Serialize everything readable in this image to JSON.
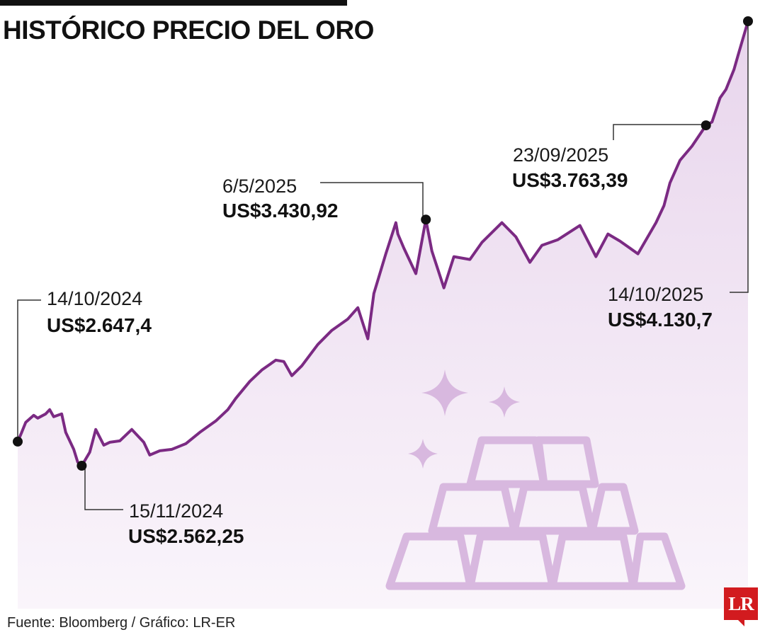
{
  "header": {
    "title": "HISTÓRICO PRECIO DEL ORO"
  },
  "footer": {
    "source": "Fuente: Bloomberg / Gráfico: LR-ER",
    "logo_text": "LR"
  },
  "colors": {
    "line": "#7b2a83",
    "fill_top": "#e8d5ec",
    "fill_bottom": "#faf5fb",
    "marker": "#111111",
    "illustration": "#d8b8df"
  },
  "illustration": {
    "icons": [
      "sparkle-icon",
      "gold-bars-icon"
    ]
  },
  "chart_data": {
    "type": "area",
    "title": "HISTÓRICO PRECIO DEL ORO",
    "xlabel": "",
    "ylabel": "",
    "ylim": [
      2450,
      4150
    ],
    "grid": false,
    "legend": "none",
    "series": [
      {
        "x": [
          "2024-10-14",
          "2024-10-16",
          "2024-10-18",
          "2024-10-22",
          "2024-10-24",
          "2024-10-28",
          "2024-10-30",
          "2024-11-01",
          "2024-11-05",
          "2024-11-07",
          "2024-11-11",
          "2024-11-13",
          "2024-11-15",
          "2024-11-19",
          "2024-11-22",
          "2024-11-26",
          "2024-11-29",
          "2024-12-04",
          "2024-12-10",
          "2024-12-16",
          "2024-12-19",
          "2024-12-24",
          "2024-12-30",
          "2025-01-06",
          "2025-01-13",
          "2025-01-21",
          "2025-01-27",
          "2025-01-31",
          "2025-02-07",
          "2025-02-13",
          "2025-02-20",
          "2025-02-24",
          "2025-02-28",
          "2025-03-05",
          "2025-03-13",
          "2025-03-20",
          "2025-03-28",
          "2025-04-02",
          "2025-04-07",
          "2025-04-10",
          "2025-04-16",
          "2025-04-21",
          "2025-04-22",
          "2025-04-25",
          "2025-05-01",
          "2025-05-06",
          "2025-05-09",
          "2025-05-15",
          "2025-05-20",
          "2025-05-28",
          "2025-06-03",
          "2025-06-13",
          "2025-06-20",
          "2025-06-27",
          "2025-07-03",
          "2025-07-11",
          "2025-07-22",
          "2025-07-30",
          "2025-08-05",
          "2025-08-11",
          "2025-08-20",
          "2025-08-29",
          "2025-09-02",
          "2025-09-05",
          "2025-09-10",
          "2025-09-16",
          "2025-09-23",
          "2025-09-26",
          "2025-09-30",
          "2025-10-03",
          "2025-10-07",
          "2025-10-09",
          "2025-10-14"
        ],
        "values": [
          2647.4,
          2680,
          2715,
          2740,
          2730,
          2745,
          2760,
          2735,
          2745,
          2680,
          2620,
          2575,
          2562.25,
          2610,
          2690,
          2635,
          2645,
          2650,
          2690,
          2645,
          2600,
          2615,
          2620,
          2640,
          2680,
          2720,
          2760,
          2800,
          2860,
          2900,
          2935,
          2930,
          2880,
          2915,
          2990,
          3040,
          3080,
          3120,
          3010,
          3170,
          3310,
          3420,
          3380,
          3330,
          3240,
          3430.92,
          3320,
          3190,
          3300,
          3290,
          3350,
          3420,
          3370,
          3280,
          3340,
          3360,
          3410,
          3300,
          3380,
          3355,
          3310,
          3420,
          3480,
          3560,
          3640,
          3690,
          3763.39,
          3775,
          3860,
          3890,
          3960,
          4010,
          4130.7
        ]
      }
    ],
    "annotations": [
      {
        "date": "14/10/2024",
        "value": "US$2.647,4"
      },
      {
        "date": "15/11/2024",
        "value": "US$2.562,25"
      },
      {
        "date": "6/5/2025",
        "value": "US$3.430,92"
      },
      {
        "date": "23/09/2025",
        "value": "US$3.763,39"
      },
      {
        "date": "14/10/2025",
        "value": "US$4.130,7"
      }
    ]
  }
}
